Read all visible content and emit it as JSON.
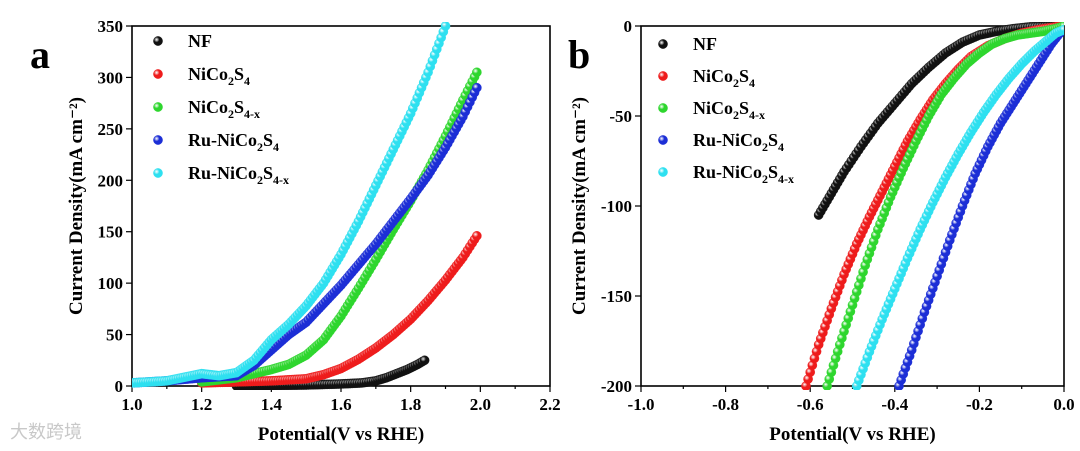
{
  "figure": {
    "watermark": "大数跨境"
  },
  "chart_data": [
    {
      "panel": "a",
      "type": "scatter",
      "xlabel": "Potential(V vs RHE)",
      "ylabel": "Current Density(mA cm⁻²)",
      "xlim": [
        1.0,
        2.2
      ],
      "ylim": [
        0,
        350
      ],
      "xticks": [
        1.0,
        1.2,
        1.4,
        1.6,
        1.8,
        2.0,
        2.2
      ],
      "xtick_labels": [
        "1.0",
        "1.2",
        "1.4",
        "1.6",
        "1.8",
        "2.0",
        "2.2"
      ],
      "yticks": [
        0,
        50,
        100,
        150,
        200,
        250,
        300,
        350
      ],
      "ytick_labels": [
        "0",
        "50",
        "100",
        "150",
        "200",
        "250",
        "300",
        "350"
      ],
      "legend_position": "top-left",
      "series": [
        {
          "name": "NF",
          "label_base": "NF",
          "label_sub": "",
          "color": "#111111",
          "x": [
            1.3,
            1.4,
            1.5,
            1.6,
            1.66,
            1.7,
            1.73,
            1.76,
            1.79,
            1.82,
            1.84
          ],
          "y": [
            0,
            0.5,
            1,
            2,
            3,
            5,
            8,
            12,
            16,
            21,
            25
          ]
        },
        {
          "name": "NiCo2S4",
          "label_base": "NiCo",
          "label_sub": "2",
          "label_base2": "S",
          "label_sub2": "4",
          "color": "#ee1c1c",
          "x": [
            1.2,
            1.3,
            1.4,
            1.5,
            1.55,
            1.6,
            1.65,
            1.7,
            1.75,
            1.8,
            1.85,
            1.9,
            1.95,
            1.99
          ],
          "y": [
            3,
            4,
            5,
            7,
            11,
            17,
            26,
            37,
            50,
            65,
            83,
            103,
            125,
            146
          ]
        },
        {
          "name": "NiCo2S4-x",
          "label_base": "NiCo",
          "label_sub": "2",
          "label_base2": "S",
          "label_sub2": "4-x",
          "color": "#2ed62e",
          "x": [
            1.2,
            1.3,
            1.4,
            1.45,
            1.5,
            1.55,
            1.6,
            1.65,
            1.7,
            1.75,
            1.8,
            1.85,
            1.9,
            1.95,
            1.99
          ],
          "y": [
            4,
            8,
            16,
            21,
            30,
            45,
            68,
            95,
            123,
            152,
            180,
            210,
            243,
            278,
            305
          ]
        },
        {
          "name": "Ru-NiCo2S4",
          "label_base": "Ru-NiCo",
          "label_sub": "2",
          "label_base2": "S",
          "label_sub2": "4",
          "color": "#1c2ed6",
          "x": [
            1.0,
            1.1,
            1.2,
            1.3,
            1.35,
            1.4,
            1.45,
            1.5,
            1.55,
            1.6,
            1.65,
            1.7,
            1.75,
            1.8,
            1.85,
            1.9,
            1.95,
            1.99
          ],
          "y": [
            3,
            5,
            8,
            10,
            20,
            35,
            50,
            62,
            80,
            98,
            118,
            138,
            160,
            182,
            205,
            232,
            262,
            290
          ]
        },
        {
          "name": "Ru-NiCo2S4-x",
          "label_base": "Ru-NiCo",
          "label_sub": "2",
          "label_base2": "S",
          "label_sub2": "4-x",
          "color": "#2ee0f0",
          "x": [
            1.0,
            1.1,
            1.2,
            1.25,
            1.3,
            1.35,
            1.4,
            1.45,
            1.5,
            1.55,
            1.6,
            1.65,
            1.7,
            1.75,
            1.8,
            1.85,
            1.9
          ],
          "y": [
            3,
            5,
            12,
            10,
            13,
            25,
            45,
            60,
            78,
            100,
            128,
            160,
            195,
            230,
            265,
            305,
            350
          ]
        }
      ]
    },
    {
      "panel": "b",
      "type": "scatter",
      "xlabel": "Potential(V vs RHE)",
      "ylabel": "Current Density(mA cm⁻²)",
      "xlim": [
        -1.0,
        0.0
      ],
      "ylim": [
        -200,
        0
      ],
      "xticks": [
        -1.0,
        -0.8,
        -0.6,
        -0.4,
        -0.2,
        0.0
      ],
      "xtick_labels": [
        "-1.0",
        "-0.8",
        "-0.6",
        "-0.4",
        "-0.2",
        "0.0"
      ],
      "yticks": [
        0,
        -50,
        -100,
        -150,
        -200
      ],
      "ytick_labels": [
        "0",
        "-50",
        "-100",
        "-150",
        "-200"
      ],
      "legend_position": "top-center",
      "series": [
        {
          "name": "NF",
          "label_base": "NF",
          "label_sub": "",
          "color": "#111111",
          "x": [
            -0.58,
            -0.55,
            -0.52,
            -0.48,
            -0.44,
            -0.4,
            -0.36,
            -0.32,
            -0.28,
            -0.24,
            -0.2,
            -0.16,
            -0.12,
            -0.08,
            -0.04,
            0.0
          ],
          "y": [
            -105,
            -93,
            -81,
            -67,
            -54,
            -43,
            -32,
            -23,
            -15,
            -9,
            -5,
            -3,
            -1.5,
            -0.5,
            -0.2,
            0
          ]
        },
        {
          "name": "NiCo2S4",
          "label_base": "NiCo",
          "label_sub": "2",
          "label_base2": "S",
          "label_sub2": "4",
          "color": "#ee1c1c",
          "x": [
            -0.61,
            -0.58,
            -0.55,
            -0.52,
            -0.49,
            -0.46,
            -0.43,
            -0.4,
            -0.37,
            -0.34,
            -0.31,
            -0.28,
            -0.25,
            -0.22,
            -0.18,
            -0.14,
            -0.1,
            -0.06,
            -0.02,
            0.0
          ],
          "y": [
            -200,
            -177,
            -157,
            -138,
            -121,
            -106,
            -92,
            -78,
            -64,
            -52,
            -41,
            -32,
            -24,
            -17,
            -11,
            -7,
            -4,
            -2,
            -0.5,
            0
          ]
        },
        {
          "name": "NiCo2S4-x",
          "label_base": "NiCo",
          "label_sub": "2",
          "label_base2": "S",
          "label_sub2": "4-x",
          "color": "#2ed62e",
          "x": [
            -0.56,
            -0.53,
            -0.5,
            -0.47,
            -0.44,
            -0.41,
            -0.38,
            -0.35,
            -0.32,
            -0.29,
            -0.26,
            -0.23,
            -0.2,
            -0.17,
            -0.14,
            -0.11,
            -0.08,
            -0.05,
            -0.02,
            0.0
          ],
          "y": [
            -200,
            -177,
            -155,
            -133,
            -113,
            -95,
            -79,
            -64,
            -50,
            -38,
            -29,
            -21,
            -15,
            -10,
            -7,
            -5,
            -4,
            -3,
            -1.5,
            0
          ]
        },
        {
          "name": "Ru-NiCo2S4",
          "label_base": "Ru-NiCo",
          "label_sub": "2",
          "label_base2": "S",
          "label_sub2": "4",
          "color": "#1c2ed6",
          "x": [
            -0.39,
            -0.36,
            -0.33,
            -0.3,
            -0.27,
            -0.24,
            -0.21,
            -0.18,
            -0.15,
            -0.12,
            -0.09,
            -0.06,
            -0.03,
            -0.01
          ],
          "y": [
            -200,
            -180,
            -159,
            -139,
            -119,
            -100,
            -82,
            -67,
            -54,
            -43,
            -32,
            -21,
            -10,
            -4
          ]
        },
        {
          "name": "Ru-NiCo2S4-x",
          "label_base": "Ru-NiCo",
          "label_sub": "2",
          "label_base2": "S",
          "label_sub2": "4-x",
          "color": "#2ee0f0",
          "x": [
            -0.49,
            -0.46,
            -0.43,
            -0.4,
            -0.37,
            -0.34,
            -0.31,
            -0.28,
            -0.25,
            -0.22,
            -0.19,
            -0.16,
            -0.13,
            -0.1,
            -0.07,
            -0.04,
            -0.02,
            0.0
          ],
          "y": [
            -200,
            -181,
            -163,
            -146,
            -129,
            -113,
            -98,
            -84,
            -71,
            -59,
            -48,
            -38,
            -29,
            -21,
            -14,
            -8,
            -4,
            -2
          ]
        }
      ]
    }
  ]
}
